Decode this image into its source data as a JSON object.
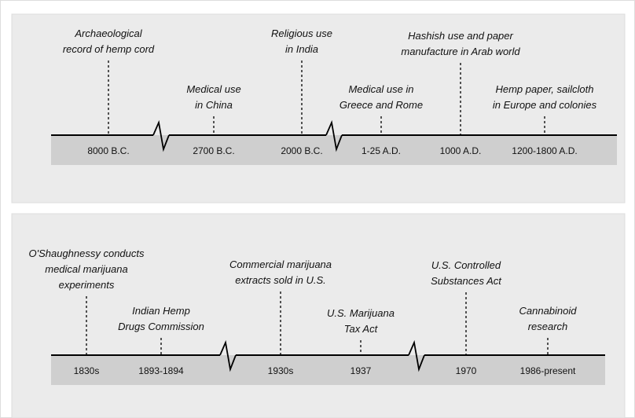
{
  "panels": [
    {
      "events": [
        {
          "label": [
            "Archaeological",
            "record of hemp cord"
          ],
          "date": "8000 B.C."
        },
        {
          "label": [
            "Medical use",
            "in China"
          ],
          "date": "2700 B.C."
        },
        {
          "label": [
            "Religious use",
            "in India"
          ],
          "date": "2000 B.C."
        },
        {
          "label": [
            "Medical use in",
            "Greece and Rome"
          ],
          "date": "1-25 A.D."
        },
        {
          "label": [
            "Hashish use and paper",
            "manufacture in Arab world"
          ],
          "date": "1000 A.D."
        },
        {
          "label": [
            "Hemp paper, sailcloth",
            "in Europe and colonies"
          ],
          "date": "1200-1800 A.D."
        }
      ]
    },
    {
      "events": [
        {
          "label": [
            "O'Shaughnessy conducts",
            "medical marijuana",
            "experiments"
          ],
          "date": "1830s"
        },
        {
          "label": [
            "Indian Hemp",
            "Drugs Commission"
          ],
          "date": "1893-1894"
        },
        {
          "label": [
            "Commercial marijuana",
            "extracts sold in U.S."
          ],
          "date": "1930s"
        },
        {
          "label": [
            "U.S. Marijuana",
            "Tax Act"
          ],
          "date": "1937"
        },
        {
          "label": [
            "U.S. Controlled",
            "Substances Act"
          ],
          "date": "1970"
        },
        {
          "label": [
            "Cannabinoid",
            "research"
          ],
          "date": "1986-present"
        }
      ]
    }
  ]
}
